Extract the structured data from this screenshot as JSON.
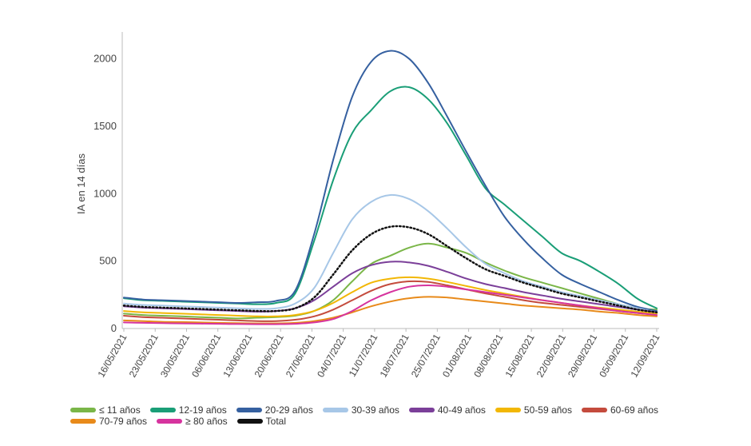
{
  "chart_data": {
    "type": "line",
    "title": "",
    "xlabel": "",
    "ylabel": "IA en 14 días",
    "ylim": [
      0,
      2200
    ],
    "yticks": [
      0,
      500,
      1000,
      1500,
      2000
    ],
    "x_tick_labels": [
      "16/05/2021",
      "23/05/2021",
      "30/05/2021",
      "06/06/2021",
      "13/06/2021",
      "20/06/2021",
      "27/06/2021",
      "04/07/2021",
      "11/07/2021",
      "18/07/2021",
      "25/07/2021",
      "01/08/2021",
      "08/08/2021",
      "15/08/2021",
      "22/08/2021",
      "29/08/2021",
      "05/09/2021",
      "12/09/2021"
    ],
    "series": [
      {
        "name": "≤ 11 años",
        "color": "#7ab648",
        "dotted": false,
        "values": [
          110,
          100,
          95,
          90,
          85,
          80,
          75,
          80,
          85,
          95,
          130,
          210,
          350,
          480,
          540,
          600,
          630,
          600,
          560,
          490,
          430,
          380,
          340,
          300,
          260,
          220,
          180,
          150,
          140
        ]
      },
      {
        "name": "12-19 años",
        "color": "#1a9e77",
        "dotted": false,
        "values": [
          225,
          210,
          205,
          200,
          195,
          190,
          185,
          180,
          190,
          260,
          650,
          1100,
          1450,
          1620,
          1760,
          1790,
          1700,
          1520,
          1280,
          1040,
          920,
          800,
          680,
          560,
          500,
          420,
          330,
          220,
          150
        ]
      },
      {
        "name": "20-29 años",
        "color": "#3560a0",
        "dotted": false,
        "values": [
          230,
          215,
          210,
          205,
          200,
          195,
          190,
          195,
          205,
          280,
          700,
          1250,
          1720,
          1980,
          2060,
          2000,
          1820,
          1570,
          1310,
          1060,
          830,
          660,
          520,
          400,
          330,
          270,
          210,
          160,
          130
        ]
      },
      {
        "name": "30-39 años",
        "color": "#a7c7e7",
        "dotted": false,
        "values": [
          185,
          175,
          170,
          165,
          160,
          155,
          150,
          145,
          150,
          185,
          300,
          560,
          810,
          940,
          990,
          960,
          870,
          740,
          600,
          480,
          410,
          350,
          310,
          270,
          240,
          210,
          180,
          150,
          120
        ]
      },
      {
        "name": "40-49 años",
        "color": "#7b3f99",
        "dotted": false,
        "values": [
          165,
          155,
          150,
          145,
          140,
          135,
          130,
          125,
          130,
          150,
          210,
          310,
          410,
          470,
          495,
          490,
          465,
          420,
          370,
          330,
          300,
          270,
          245,
          220,
          200,
          180,
          160,
          140,
          120
        ]
      },
      {
        "name": "50-59 años",
        "color": "#f2b705",
        "dotted": false,
        "values": [
          130,
          120,
          115,
          110,
          105,
          100,
          95,
          90,
          90,
          100,
          130,
          190,
          270,
          340,
          370,
          380,
          370,
          345,
          315,
          285,
          260,
          235,
          210,
          190,
          170,
          155,
          140,
          125,
          110
        ]
      },
      {
        "name": "60-69 años",
        "color": "#c44b3d",
        "dotted": false,
        "values": [
          95,
          85,
          80,
          75,
          70,
          65,
          60,
          55,
          55,
          65,
          90,
          140,
          210,
          280,
          330,
          350,
          345,
          320,
          290,
          260,
          235,
          210,
          190,
          175,
          160,
          145,
          130,
          115,
          100
        ]
      },
      {
        "name": "70-79 años",
        "color": "#e88a1a",
        "dotted": false,
        "values": [
          60,
          55,
          50,
          48,
          45,
          42,
          40,
          38,
          38,
          42,
          55,
          80,
          120,
          165,
          200,
          225,
          235,
          230,
          215,
          200,
          185,
          170,
          160,
          150,
          140,
          125,
          115,
          100,
          90
        ]
      },
      {
        "name": "≥ 80 años",
        "color": "#d6339e",
        "dotted": false,
        "values": [
          45,
          42,
          40,
          38,
          36,
          35,
          33,
          32,
          32,
          35,
          45,
          70,
          130,
          210,
          270,
          310,
          320,
          310,
          290,
          270,
          250,
          230,
          210,
          190,
          170,
          150,
          130,
          115,
          100
        ]
      },
      {
        "name": "Total",
        "color": "#111111",
        "dotted": true,
        "values": [
          170,
          160,
          155,
          150,
          145,
          140,
          135,
          130,
          130,
          150,
          230,
          400,
          580,
          700,
          755,
          750,
          700,
          610,
          520,
          440,
          390,
          340,
          300,
          260,
          230,
          200,
          170,
          140,
          120
        ]
      }
    ]
  }
}
